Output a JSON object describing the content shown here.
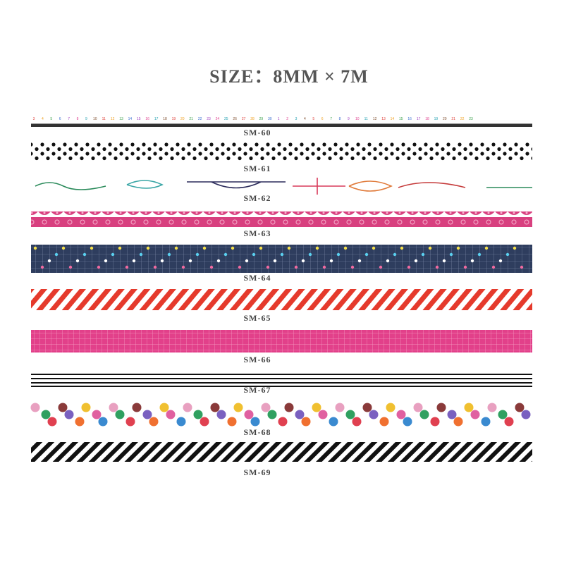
{
  "header": {
    "title": "SIZE：8MM × 7M"
  },
  "ruler": {
    "first_run": [
      3,
      4,
      5,
      6,
      7,
      8,
      9,
      10,
      11,
      12,
      13,
      14,
      15,
      16,
      17,
      18,
      19,
      20,
      21,
      22,
      23,
      24,
      25,
      26,
      27,
      28,
      29,
      30
    ],
    "second_run": [
      1,
      2,
      3,
      4,
      5,
      6,
      7,
      8,
      9,
      10,
      11,
      12,
      13,
      14,
      15,
      16,
      17,
      18,
      19,
      20,
      21,
      22,
      23
    ]
  },
  "tapes": [
    "SM-60",
    "SM-61",
    "SM-62",
    "SM-63",
    "SM-64",
    "SM-65",
    "SM-66",
    "SM-67",
    "SM-68",
    "SM-69"
  ]
}
